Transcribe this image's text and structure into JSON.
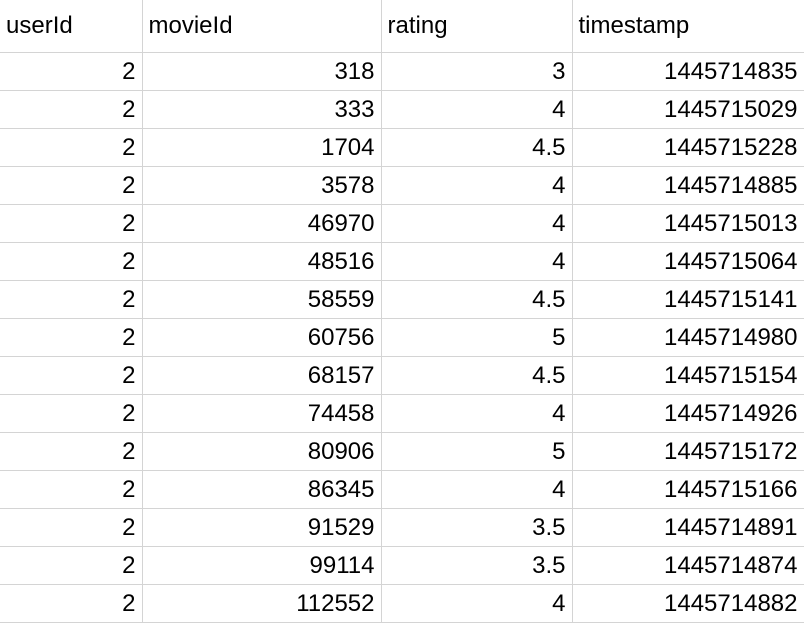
{
  "sheet": {
    "headers": [
      "userId",
      "movieId",
      "rating",
      "timestamp"
    ],
    "rows": [
      [
        "2",
        "318",
        "3",
        "1445714835"
      ],
      [
        "2",
        "333",
        "4",
        "1445715029"
      ],
      [
        "2",
        "1704",
        "4.5",
        "1445715228"
      ],
      [
        "2",
        "3578",
        "4",
        "1445714885"
      ],
      [
        "2",
        "46970",
        "4",
        "1445715013"
      ],
      [
        "2",
        "48516",
        "4",
        "1445715064"
      ],
      [
        "2",
        "58559",
        "4.5",
        "1445715141"
      ],
      [
        "2",
        "60756",
        "5",
        "1445714980"
      ],
      [
        "2",
        "68157",
        "4.5",
        "1445715154"
      ],
      [
        "2",
        "74458",
        "4",
        "1445714926"
      ],
      [
        "2",
        "80906",
        "5",
        "1445715172"
      ],
      [
        "2",
        "86345",
        "4",
        "1445715166"
      ],
      [
        "2",
        "91529",
        "3.5",
        "1445714891"
      ],
      [
        "2",
        "99114",
        "3.5",
        "1445714874"
      ],
      [
        "2",
        "112552",
        "4",
        "1445714882"
      ]
    ]
  }
}
